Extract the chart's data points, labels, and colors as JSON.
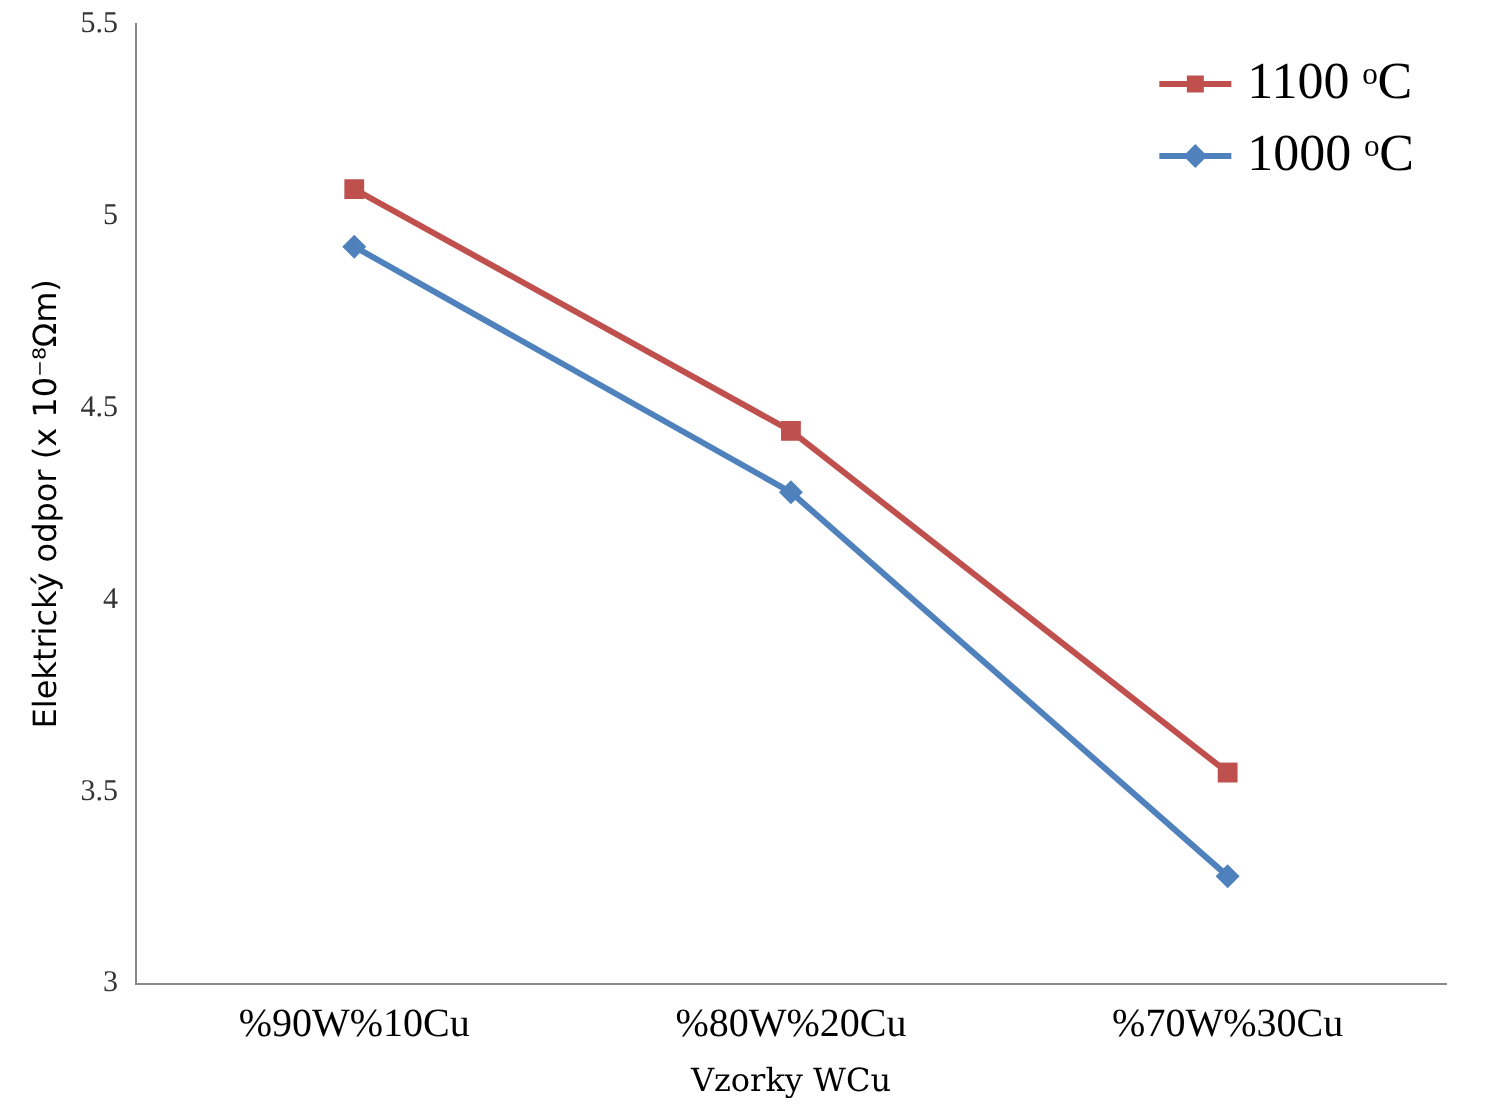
{
  "chart_data": {
    "type": "line",
    "xlabel": "Vzorky WCu",
    "ylabel": "Elektrický odpor (x 10⁻⁸Ωm)",
    "categories": [
      "%90W%10Cu",
      "%80W%20Cu",
      "%70W%30Cu"
    ],
    "series": [
      {
        "name": "1100 ᵒC",
        "color": "#c0504d",
        "marker": "square",
        "values": [
          5.07,
          4.44,
          3.55
        ]
      },
      {
        "name": "1000 ᵒC",
        "color": "#4f81bd",
        "marker": "diamond",
        "values": [
          4.92,
          4.28,
          3.28
        ]
      }
    ],
    "ylim": [
      3,
      5.5
    ],
    "yticks": [
      3,
      3.5,
      4,
      4.5,
      5,
      5.5
    ],
    "grid": false,
    "legend": "top right",
    "line_style": "solid"
  }
}
